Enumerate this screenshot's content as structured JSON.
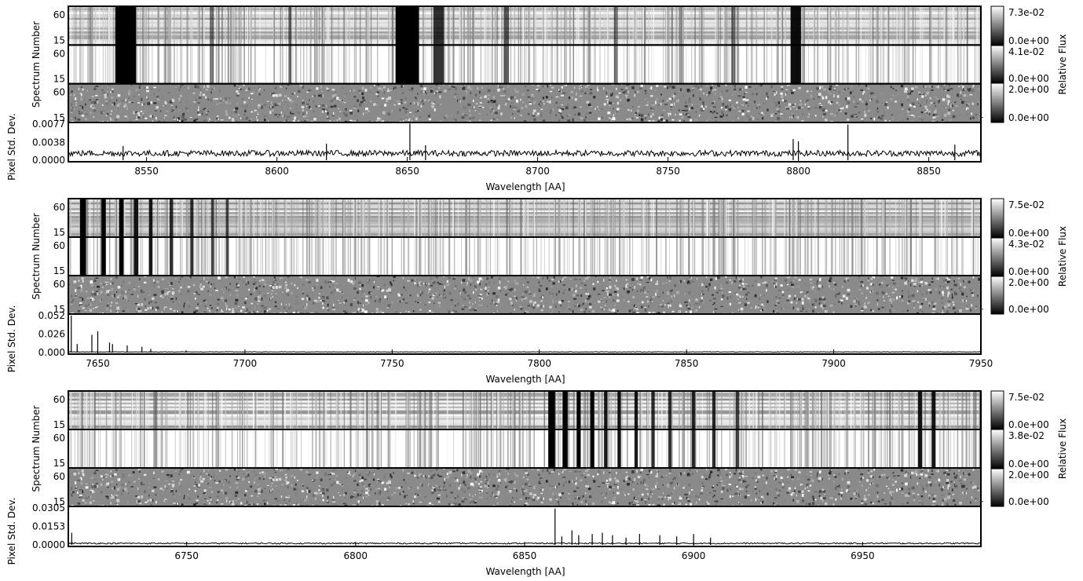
{
  "colorbar_label": "Relative Flux",
  "ylabel_spectrum": "Spectrum Number",
  "ylabel_std": "Pixel Std. Dev.",
  "xlabel": "Wavelength [AA]",
  "chart_data": [
    {
      "type": "heatmap",
      "xlabel": "Wavelength [AA]",
      "xlim": [
        8520,
        8870
      ],
      "xticks": [
        8550,
        8600,
        8650,
        8700,
        8750,
        8800,
        8850
      ],
      "image_rows": [
        {
          "name": "flux",
          "yticks": [
            "15",
            "60"
          ],
          "colorbar": [
            "0.0e+00",
            "7.3e-02"
          ]
        },
        {
          "name": "normalized",
          "yticks": [
            "15",
            "60"
          ],
          "colorbar": [
            "0.0e+00",
            "4.1e-02"
          ]
        },
        {
          "name": "residual",
          "yticks": [
            "15",
            "60"
          ],
          "colorbar": [
            "0.0e+00",
            "2.0e+00"
          ]
        }
      ],
      "std_panel": {
        "ylabel": "Pixel Std. Dev.",
        "ylim": [
          0,
          0.0077
        ],
        "yticks": [
          "0.0000",
          "0.0038",
          "0.0077"
        ],
        "baseline": 0.0014,
        "slope": 0.0,
        "spikes": [
          [
            8541,
            0.003
          ],
          [
            8619,
            0.0035
          ],
          [
            8651,
            0.0078
          ],
          [
            8657,
            0.0032
          ],
          [
            8798,
            0.0045
          ],
          [
            8800,
            0.004
          ],
          [
            8819,
            0.0076
          ],
          [
            8860,
            0.0033
          ]
        ]
      },
      "absorption": [
        [
          8542,
          8.0,
          1.0
        ],
        [
          8662,
          4.0,
          0.8
        ],
        [
          8650,
          9.0,
          1.0
        ],
        [
          8799,
          4.0,
          0.95
        ],
        [
          8688,
          2.0,
          0.6
        ],
        [
          8575,
          1.5,
          0.5
        ],
        [
          8605,
          1.2,
          0.5
        ],
        [
          8730,
          1.5,
          0.5
        ],
        [
          8775,
          1.5,
          0.5
        ]
      ]
    },
    {
      "type": "heatmap",
      "xlabel": "Wavelength [AA]",
      "xlim": [
        7640,
        7950
      ],
      "xticks": [
        7650,
        7700,
        7750,
        7800,
        7850,
        7900,
        7950
      ],
      "image_rows": [
        {
          "name": "flux",
          "yticks": [
            "15",
            "60"
          ],
          "colorbar": [
            "0.0e+00",
            "7.5e-02"
          ]
        },
        {
          "name": "normalized",
          "yticks": [
            "15",
            "60"
          ],
          "colorbar": [
            "0.0e+00",
            "4.3e-02"
          ]
        },
        {
          "name": "residual",
          "yticks": [
            "15",
            "60"
          ],
          "colorbar": [
            "0.0e+00",
            "2.0e+00"
          ]
        }
      ],
      "std_panel": {
        "ylabel": "Pixel Std. Dev.",
        "ylim": [
          0,
          0.052
        ],
        "yticks": [
          "0.000",
          "0.026",
          "0.052"
        ],
        "baseline": 0.0008,
        "slope": 0.0,
        "spikes": [
          [
            7641,
            0.052
          ],
          [
            7643,
            0.012
          ],
          [
            7648,
            0.025
          ],
          [
            7650,
            0.03
          ],
          [
            7654,
            0.014
          ],
          [
            7655,
            0.012
          ],
          [
            7660,
            0.01
          ],
          [
            7665,
            0.008
          ],
          [
            7668,
            0.005
          ],
          [
            7680,
            0.003
          ]
        ]
      },
      "absorption": [
        [
          7645,
          2.0,
          1.0
        ],
        [
          7652,
          1.5,
          1.0
        ],
        [
          7658,
          1.5,
          1.0
        ],
        [
          7663,
          1.5,
          0.9
        ],
        [
          7668,
          1.2,
          0.9
        ],
        [
          7675,
          1.2,
          0.8
        ],
        [
          7682,
          1.0,
          0.8
        ],
        [
          7689,
          1.0,
          0.7
        ],
        [
          7694,
          1.0,
          0.7
        ]
      ]
    },
    {
      "type": "heatmap",
      "xlabel": "Wavelength [AA]",
      "xlim": [
        6715,
        6985
      ],
      "xticks": [
        6750,
        6800,
        6850,
        6900,
        6950
      ],
      "image_rows": [
        {
          "name": "flux",
          "yticks": [
            "15",
            "60"
          ],
          "colorbar": [
            "0.0e+00",
            "7.5e-02"
          ]
        },
        {
          "name": "normalized",
          "yticks": [
            "15",
            "60"
          ],
          "colorbar": [
            "0.0e+00",
            "3.8e-02"
          ]
        },
        {
          "name": "residual",
          "yticks": [
            "15",
            "60"
          ],
          "colorbar": [
            "0.0e+00",
            "2.0e+00"
          ]
        }
      ],
      "std_panel": {
        "ylabel": "Pixel Std. Dev.",
        "ylim": [
          0,
          0.0305
        ],
        "yticks": [
          "0.0000",
          "0.0153",
          "0.0305"
        ],
        "baseline": 0.0012,
        "slope": 0.0,
        "spikes": [
          [
            6716,
            0.01
          ],
          [
            6859,
            0.03
          ],
          [
            6861,
            0.007
          ],
          [
            6864,
            0.012
          ],
          [
            6866,
            0.008
          ],
          [
            6870,
            0.009
          ],
          [
            6873,
            0.01
          ],
          [
            6876,
            0.008
          ],
          [
            6880,
            0.006
          ],
          [
            6884,
            0.009
          ],
          [
            6890,
            0.008
          ],
          [
            6895,
            0.007
          ],
          [
            6900,
            0.009
          ],
          [
            6905,
            0.006
          ]
        ]
      },
      "absorption": [
        [
          6858,
          2.0,
          1.0
        ],
        [
          6862,
          1.5,
          1.0
        ],
        [
          6866,
          1.2,
          1.0
        ],
        [
          6870,
          1.2,
          1.0
        ],
        [
          6874,
          1.0,
          0.9
        ],
        [
          6878,
          1.0,
          0.9
        ],
        [
          6883,
          1.0,
          0.9
        ],
        [
          6888,
          1.0,
          0.8
        ],
        [
          6893,
          1.0,
          0.8
        ],
        [
          6900,
          1.0,
          0.8
        ],
        [
          6906,
          1.0,
          0.8
        ],
        [
          6913,
          1.0,
          0.7
        ],
        [
          6967,
          1.2,
          0.9
        ],
        [
          6971,
          1.2,
          0.9
        ]
      ]
    }
  ]
}
